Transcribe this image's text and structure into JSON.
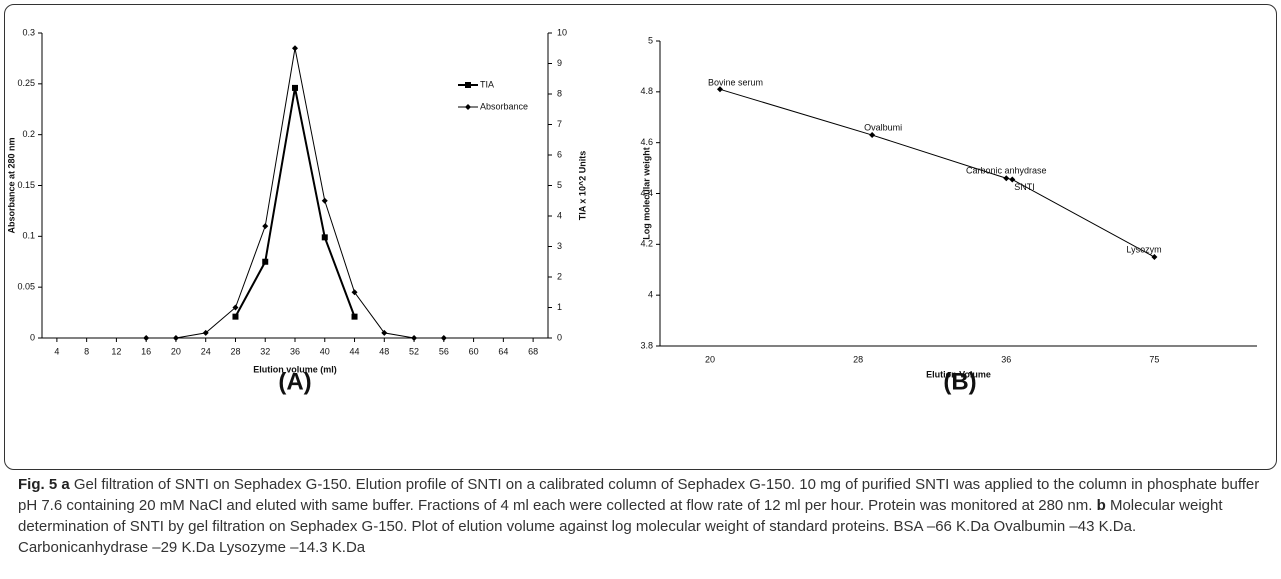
{
  "chart_data": [
    {
      "type": "line",
      "panel_label": "(A)",
      "x_label": "Elution volume (ml)",
      "y_label": "Absorbance at 280 nm",
      "y2_label": "TIA x 10^2 Units",
      "xlim": [
        2,
        70
      ],
      "xticks": [
        4,
        8,
        12,
        16,
        20,
        24,
        28,
        32,
        36,
        40,
        44,
        48,
        52,
        56,
        60,
        64,
        68
      ],
      "ylim": [
        0,
        0.3
      ],
      "yticks": [
        0,
        0.05,
        0.1,
        0.15,
        0.2,
        0.25,
        0.3
      ],
      "y2lim": [
        0,
        10
      ],
      "y2ticks": [
        0,
        1,
        2,
        3,
        4,
        5,
        6,
        7,
        8,
        9,
        10
      ],
      "series": [
        {
          "name": "TIA",
          "color": "#000000",
          "axis": "y2",
          "marker": "square",
          "x": [
            28,
            32,
            36,
            40,
            44
          ],
          "values": [
            0.7,
            2.5,
            8.2,
            3.3,
            0.7
          ]
        },
        {
          "name": "Absorbance",
          "color": "#000000",
          "marker": "diamond",
          "x": [
            16,
            20,
            24,
            28,
            32,
            36,
            40,
            44,
            48,
            52,
            56
          ],
          "values": [
            0,
            0,
            0.005,
            0.03,
            0.11,
            0.285,
            0.135,
            0.045,
            0.005,
            0,
            0
          ]
        }
      ]
    },
    {
      "type": "line",
      "panel_label": "(B)",
      "x_label": "Elution Volume",
      "y_label": "Log molecular weight",
      "categories": [
        "20",
        "28",
        "36",
        "75"
      ],
      "ylim": [
        3.8,
        5
      ],
      "yticks": [
        3.8,
        4,
        4.2,
        4.4,
        4.6,
        4.8,
        5
      ],
      "points": [
        {
          "label": "Bovine serum",
          "category": 0,
          "value": 4.81
        },
        {
          "label": "Ovalbumi",
          "category": 1,
          "value": 4.63
        },
        {
          "label": "Carbonic anhydrase",
          "category": 2,
          "value": 4.46
        },
        {
          "label": "SNTI",
          "category": 2,
          "value": 4.455
        },
        {
          "label": "Lysozym",
          "category": 3,
          "value": 4.15
        }
      ]
    }
  ],
  "caption": {
    "label": "Fig. 5",
    "a_marker": "a",
    "a_text": "Gel filtration of SNTI on Sephadex G-150. Elution profile of SNTI on a calibrated column of Sephadex G-150. 10 mg of purified SNTI was applied to the column in phosphate buffer pH 7.6 containing 20 mM NaCl and eluted with same buffer. Fractions of 4 ml each were collected at flow rate of 12 ml per hour. Protein was monitored at 280 nm.",
    "b_marker": "b",
    "b_text": "Molecular weight determination of SNTI by gel filtration on Sephadex G-150. Plot of elution volume against log molecular weight of standard proteins. BSA –66 K.Da Ovalbumin –43 K.Da. Carbonicanhydrase –29 K.Da Lysozyme –14.3 K.Da"
  }
}
